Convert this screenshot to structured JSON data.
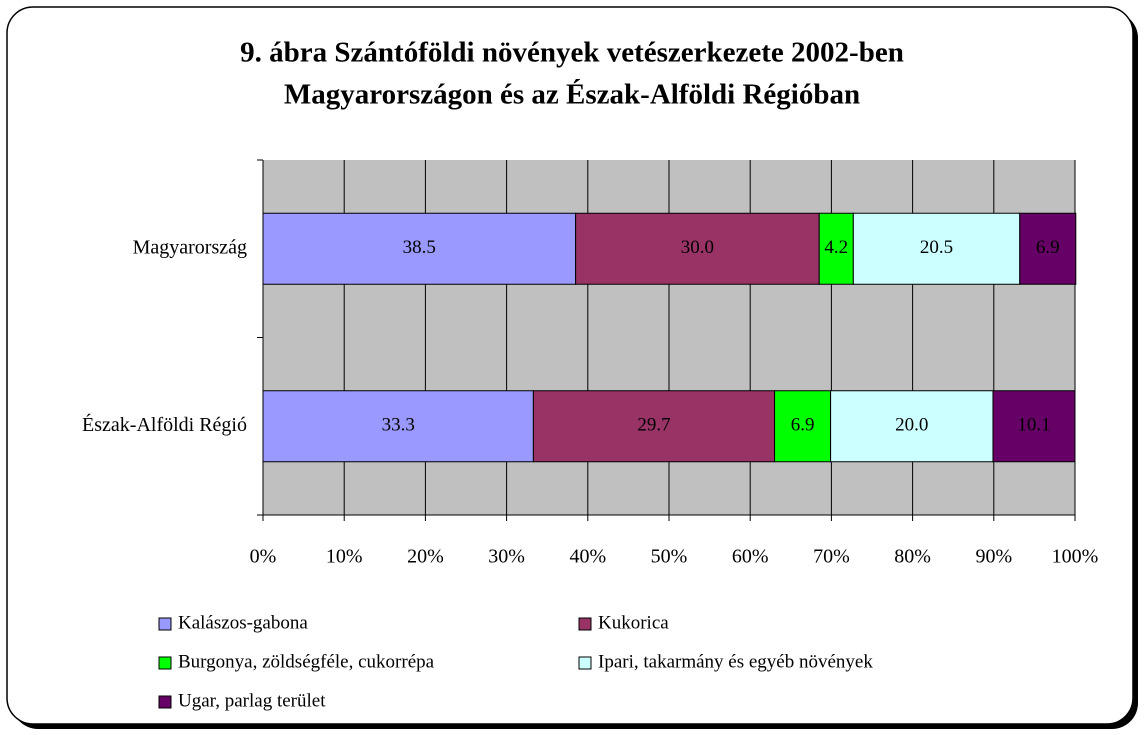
{
  "chart_data": {
    "type": "stacked_bar_horizontal",
    "title": [
      "9. ábra Szántóföldi növények vetészerkezete 2002-ben",
      "Magyarországon és az Észak-Alföldi Régióban"
    ],
    "categories": [
      "Magyarország",
      "Észak-Alföldi Régió"
    ],
    "series": [
      {
        "name": "Kalászos-gabona",
        "color": "#9999ff",
        "values": [
          38.5,
          33.3
        ],
        "value_labels": [
          "38.5",
          "33.3"
        ]
      },
      {
        "name": "Kukorica",
        "color": "#993366",
        "values": [
          30.0,
          29.7
        ],
        "value_labels": [
          "30.0",
          "29.7"
        ]
      },
      {
        "name": "Burgonya, zöldségféle, cukorrépa",
        "color": "#00ff00",
        "values": [
          4.2,
          6.9
        ],
        "value_labels": [
          "4.2",
          "6.9"
        ]
      },
      {
        "name": "Ipari, takarmány és egyéb növények",
        "color": "#ccffff",
        "values": [
          20.5,
          20.0
        ],
        "value_labels": [
          "20.5",
          "20.0"
        ]
      },
      {
        "name": "Ugar, parlag terület",
        "color": "#660066",
        "values": [
          6.9,
          10.1
        ],
        "value_labels": [
          "6.9",
          "10.1"
        ]
      }
    ],
    "xlim": [
      0,
      100
    ],
    "xticks": [
      {
        "value": 0,
        "label": "0%"
      },
      {
        "value": 10,
        "label": "10%"
      },
      {
        "value": 20,
        "label": "20%"
      },
      {
        "value": 30,
        "label": "30%"
      },
      {
        "value": 40,
        "label": "40%"
      },
      {
        "value": 50,
        "label": "50%"
      },
      {
        "value": 60,
        "label": "60%"
      },
      {
        "value": 70,
        "label": "70%"
      },
      {
        "value": 80,
        "label": "80%"
      },
      {
        "value": 90,
        "label": "90%"
      },
      {
        "value": 100,
        "label": "100%"
      }
    ],
    "grid": true,
    "plot_background": "#c0c0c0",
    "legend": "bottom"
  }
}
